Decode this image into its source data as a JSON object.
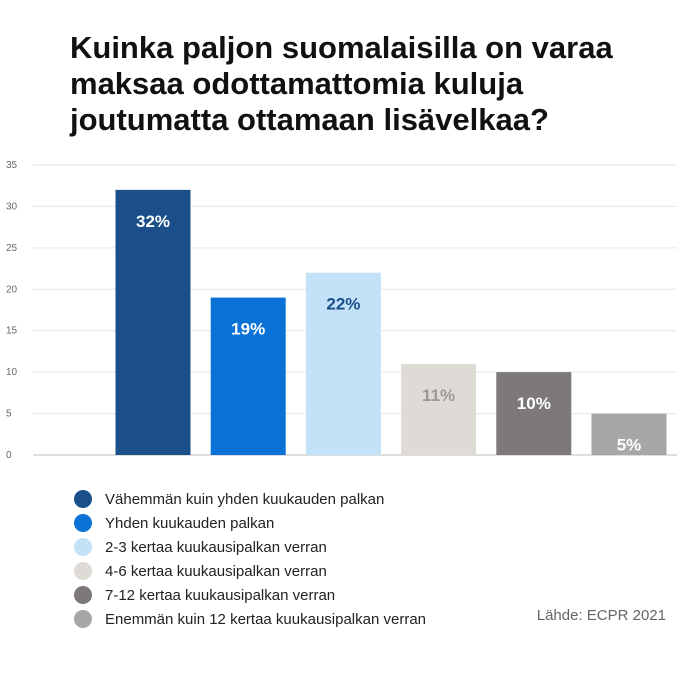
{
  "title_lines": [
    "Kuinka paljon suomalaisilla on varaa",
    "maksaa odottamattomia kuluja",
    "joutumatta ottamaan lisävelkaa?"
  ],
  "source": "Lähde: ECPR 2021",
  "chart_data": {
    "type": "bar",
    "title": "Kuinka paljon suomalaisilla on varaa maksaa odottamattomia kuluja joutumatta ottamaan lisävelkaa?",
    "categories": [
      "Vähemmän kuin yhden kuukauden palkan",
      "Yhden kuukauden palkan",
      "2-3 kertaa kuukausipalkan verran",
      "4-6 kertaa kuukausipalkan verran",
      "7-12 kertaa kuukausipalkan verran",
      "Enemmän kuin 12 kertaa kuukausipalkan verran"
    ],
    "values": [
      32,
      19,
      22,
      11,
      10,
      5
    ],
    "data_labels": [
      "32%",
      "19%",
      "22%",
      "11%",
      "10%",
      "5%"
    ],
    "colors": [
      "#1b4f8a",
      "#0a72d6",
      "#c3e1f7",
      "#dedbd7",
      "#7d797b",
      "#a9a6a8"
    ],
    "label_colors": [
      "#ffffff",
      "#ffffff",
      "#1b4f8a",
      "#9e9891",
      "#ffffff",
      "#ffffff"
    ],
    "ylim": [
      0,
      35
    ],
    "yticks": [
      0,
      5,
      10,
      15,
      20,
      25,
      30,
      35
    ],
    "ytick_labels": [
      "0",
      "5",
      "10",
      "15",
      "20",
      "25",
      "30",
      "35"
    ],
    "xlabel": "",
    "ylabel": "",
    "grid": true,
    "legend_position": "bottom-left"
  }
}
